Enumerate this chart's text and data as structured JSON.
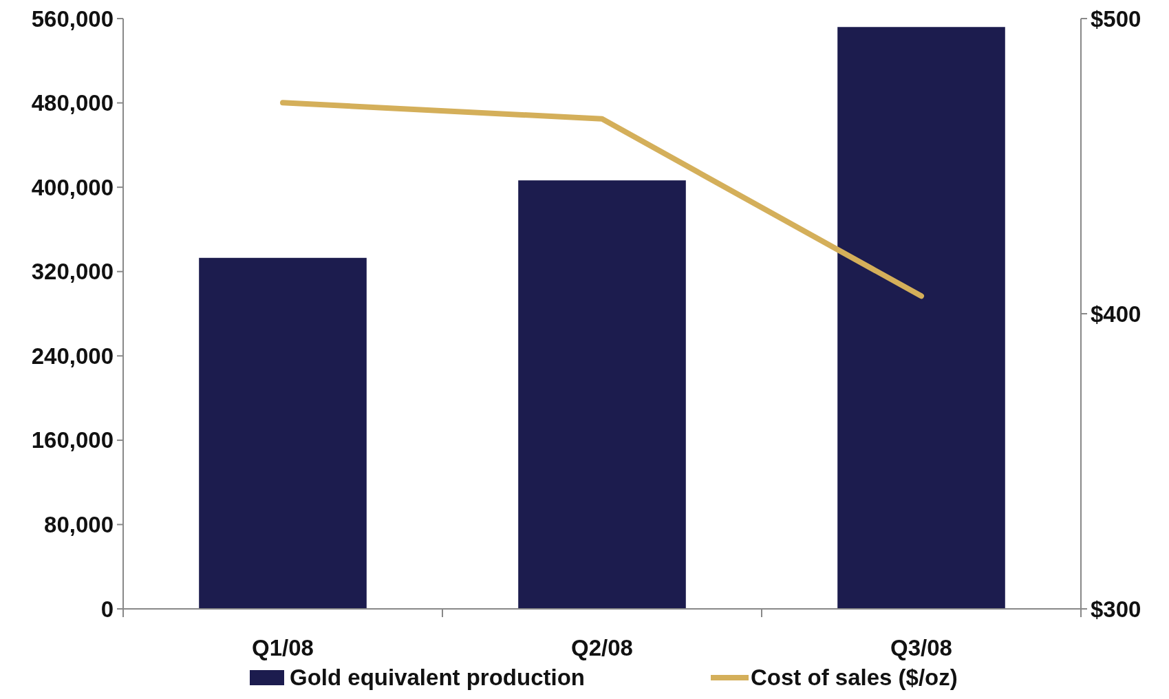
{
  "chart_data": {
    "type": "bar",
    "categories": [
      "Q1/08",
      "Q2/08",
      "Q3/08"
    ],
    "series": [
      {
        "name": "Gold equivalent production",
        "color": "#1c1c4e",
        "values": [
          333000,
          406500,
          552000
        ]
      },
      {
        "name": "Cost of sales ($/oz)",
        "type": "line",
        "axis": "y2",
        "color": "#d4af5a",
        "values": [
          471.5,
          466,
          406
        ]
      }
    ],
    "ylim": [
      0,
      560000
    ],
    "yticks": [
      {
        "value": 0,
        "label": "0"
      },
      {
        "value": 80000,
        "label": "80,000"
      },
      {
        "value": 160000,
        "label": "160,000"
      },
      {
        "value": 240000,
        "label": "240,000"
      },
      {
        "value": 320000,
        "label": "320,000"
      },
      {
        "value": 400000,
        "label": "400,000"
      },
      {
        "value": 480000,
        "label": "480,000"
      },
      {
        "value": 560000,
        "label": "560,000"
      }
    ],
    "y2lim": [
      300,
      500
    ],
    "y2ticks": [
      {
        "value": 300,
        "label": "$300"
      },
      {
        "value": 400,
        "label": "$400"
      },
      {
        "value": 500,
        "label": "$500"
      }
    ],
    "grid": false,
    "legend": "bottom",
    "marker": "none",
    "line_style": "solid"
  }
}
